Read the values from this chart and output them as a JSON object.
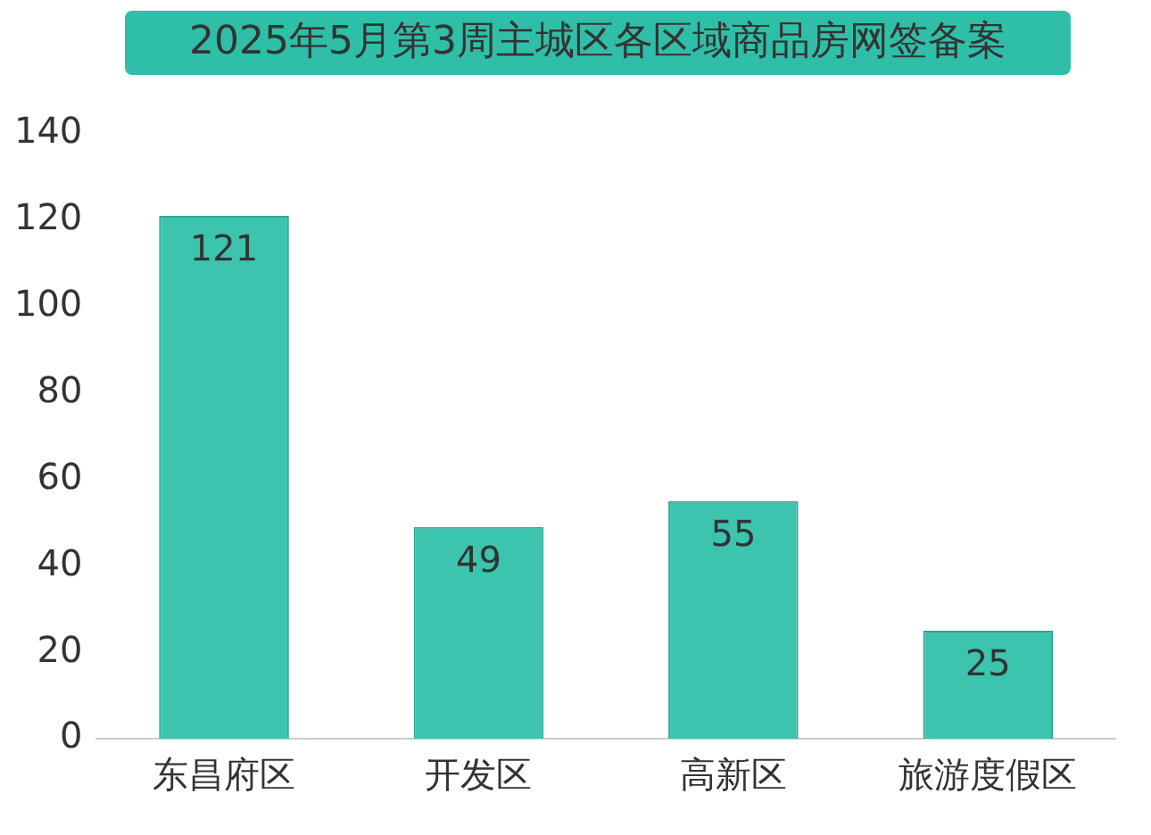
{
  "chart_data": {
    "type": "bar",
    "title": "2025年5月第3周主城区各区域商品房网签备案",
    "categories": [
      "东昌府区",
      "开发区",
      "高新区",
      "旅游度假区"
    ],
    "values": [
      121,
      49,
      55,
      25
    ],
    "color": "#3cc4ae",
    "ylim": [
      0,
      140
    ],
    "yticks": [
      0,
      20,
      40,
      60,
      80,
      100,
      120,
      140
    ],
    "grid": false,
    "data_labels": true
  }
}
